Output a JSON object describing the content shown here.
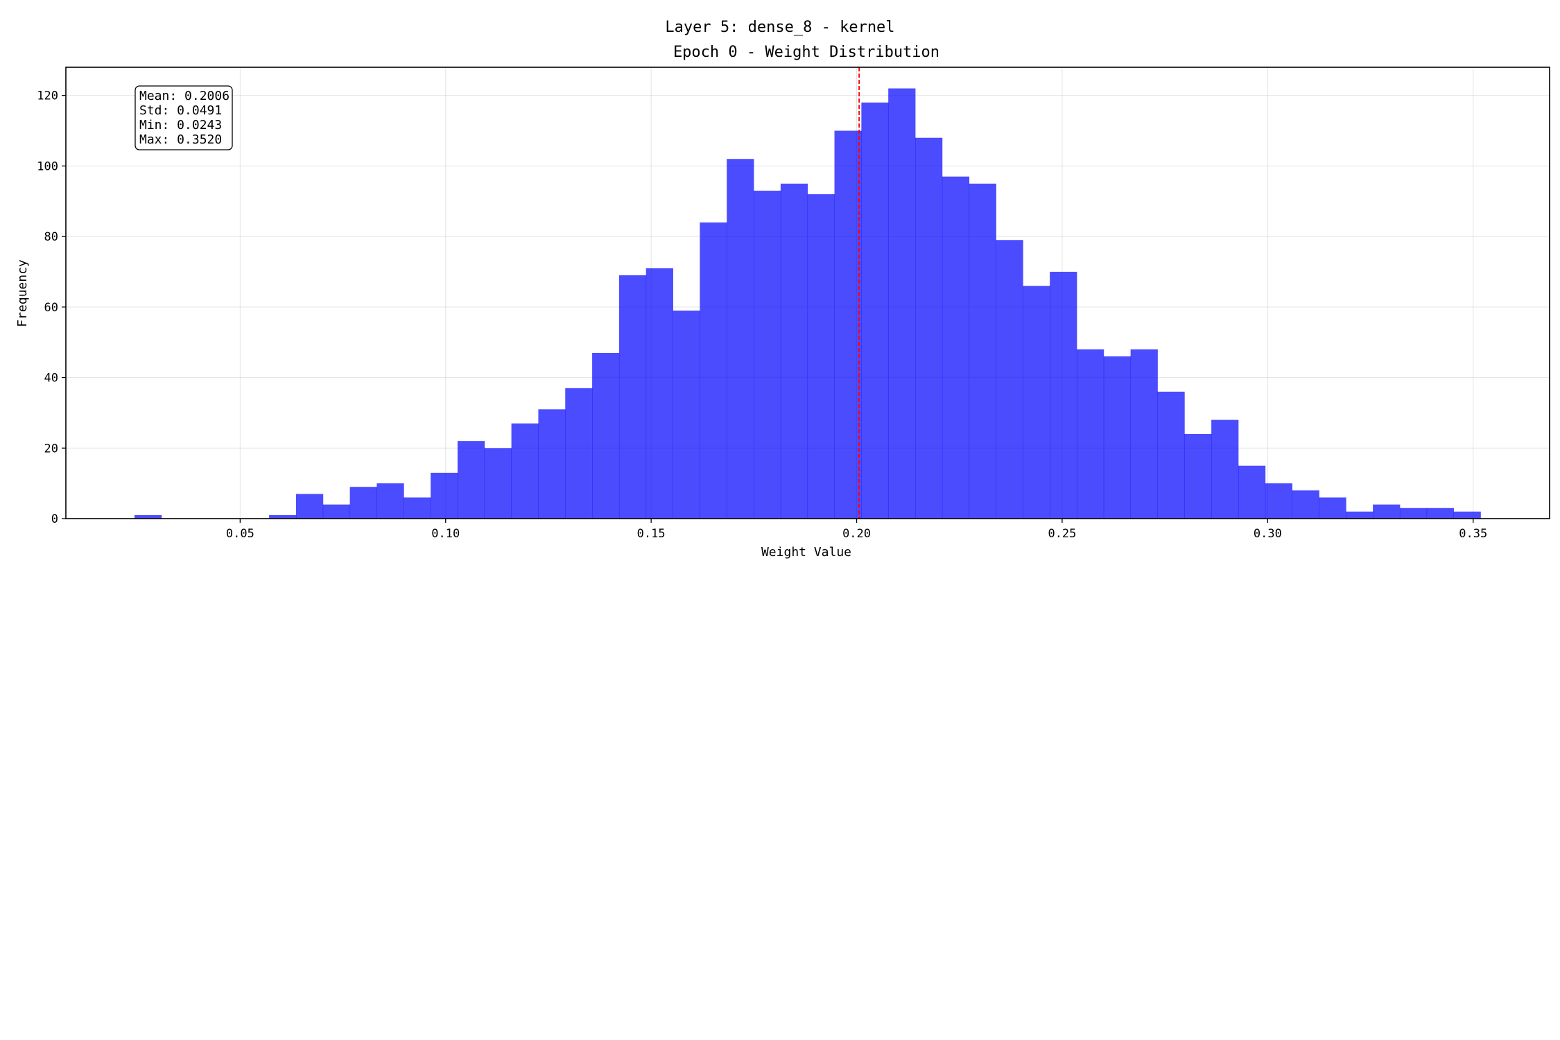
{
  "chart_data": {
    "type": "bar",
    "suptitle": "Layer 5: dense_8 - kernel",
    "title": "Epoch 0 - Weight Distribution",
    "xlabel": "Weight Value",
    "ylabel": "Frequency",
    "xlim": [
      0.0076,
      0.3686
    ],
    "ylim": [
      0,
      128
    ],
    "grid": true,
    "bar_color": "#0000ff",
    "bar_opacity": 0.7,
    "mean_line_color": "#ff0000",
    "mean_line": 0.2006,
    "x_ticks": [
      0.05,
      0.1,
      0.15,
      0.2,
      0.25,
      0.3,
      0.35
    ],
    "x_tick_labels": [
      "0.05",
      "0.10",
      "0.15",
      "0.20",
      "0.25",
      "0.30",
      "0.35"
    ],
    "y_ticks": [
      0,
      20,
      40,
      60,
      80,
      100,
      120
    ],
    "y_tick_labels": [
      "0",
      "20",
      "40",
      "60",
      "80",
      "100",
      "120"
    ],
    "bin_start": 0.0243,
    "bin_width": 0.00655,
    "values": [
      1,
      0,
      0,
      0,
      0,
      1,
      7,
      4,
      9,
      10,
      6,
      13,
      22,
      20,
      27,
      31,
      37,
      47,
      69,
      71,
      59,
      84,
      102,
      93,
      95,
      92,
      110,
      118,
      122,
      108,
      97,
      95,
      79,
      66,
      70,
      48,
      46,
      48,
      36,
      24,
      28,
      15,
      10,
      8,
      6,
      2,
      4,
      3,
      3,
      2
    ],
    "stats": {
      "mean": "Mean: 0.2006",
      "std": "Std: 0.0491",
      "min": "Min: 0.0243",
      "max": "Max: 0.3520"
    }
  }
}
